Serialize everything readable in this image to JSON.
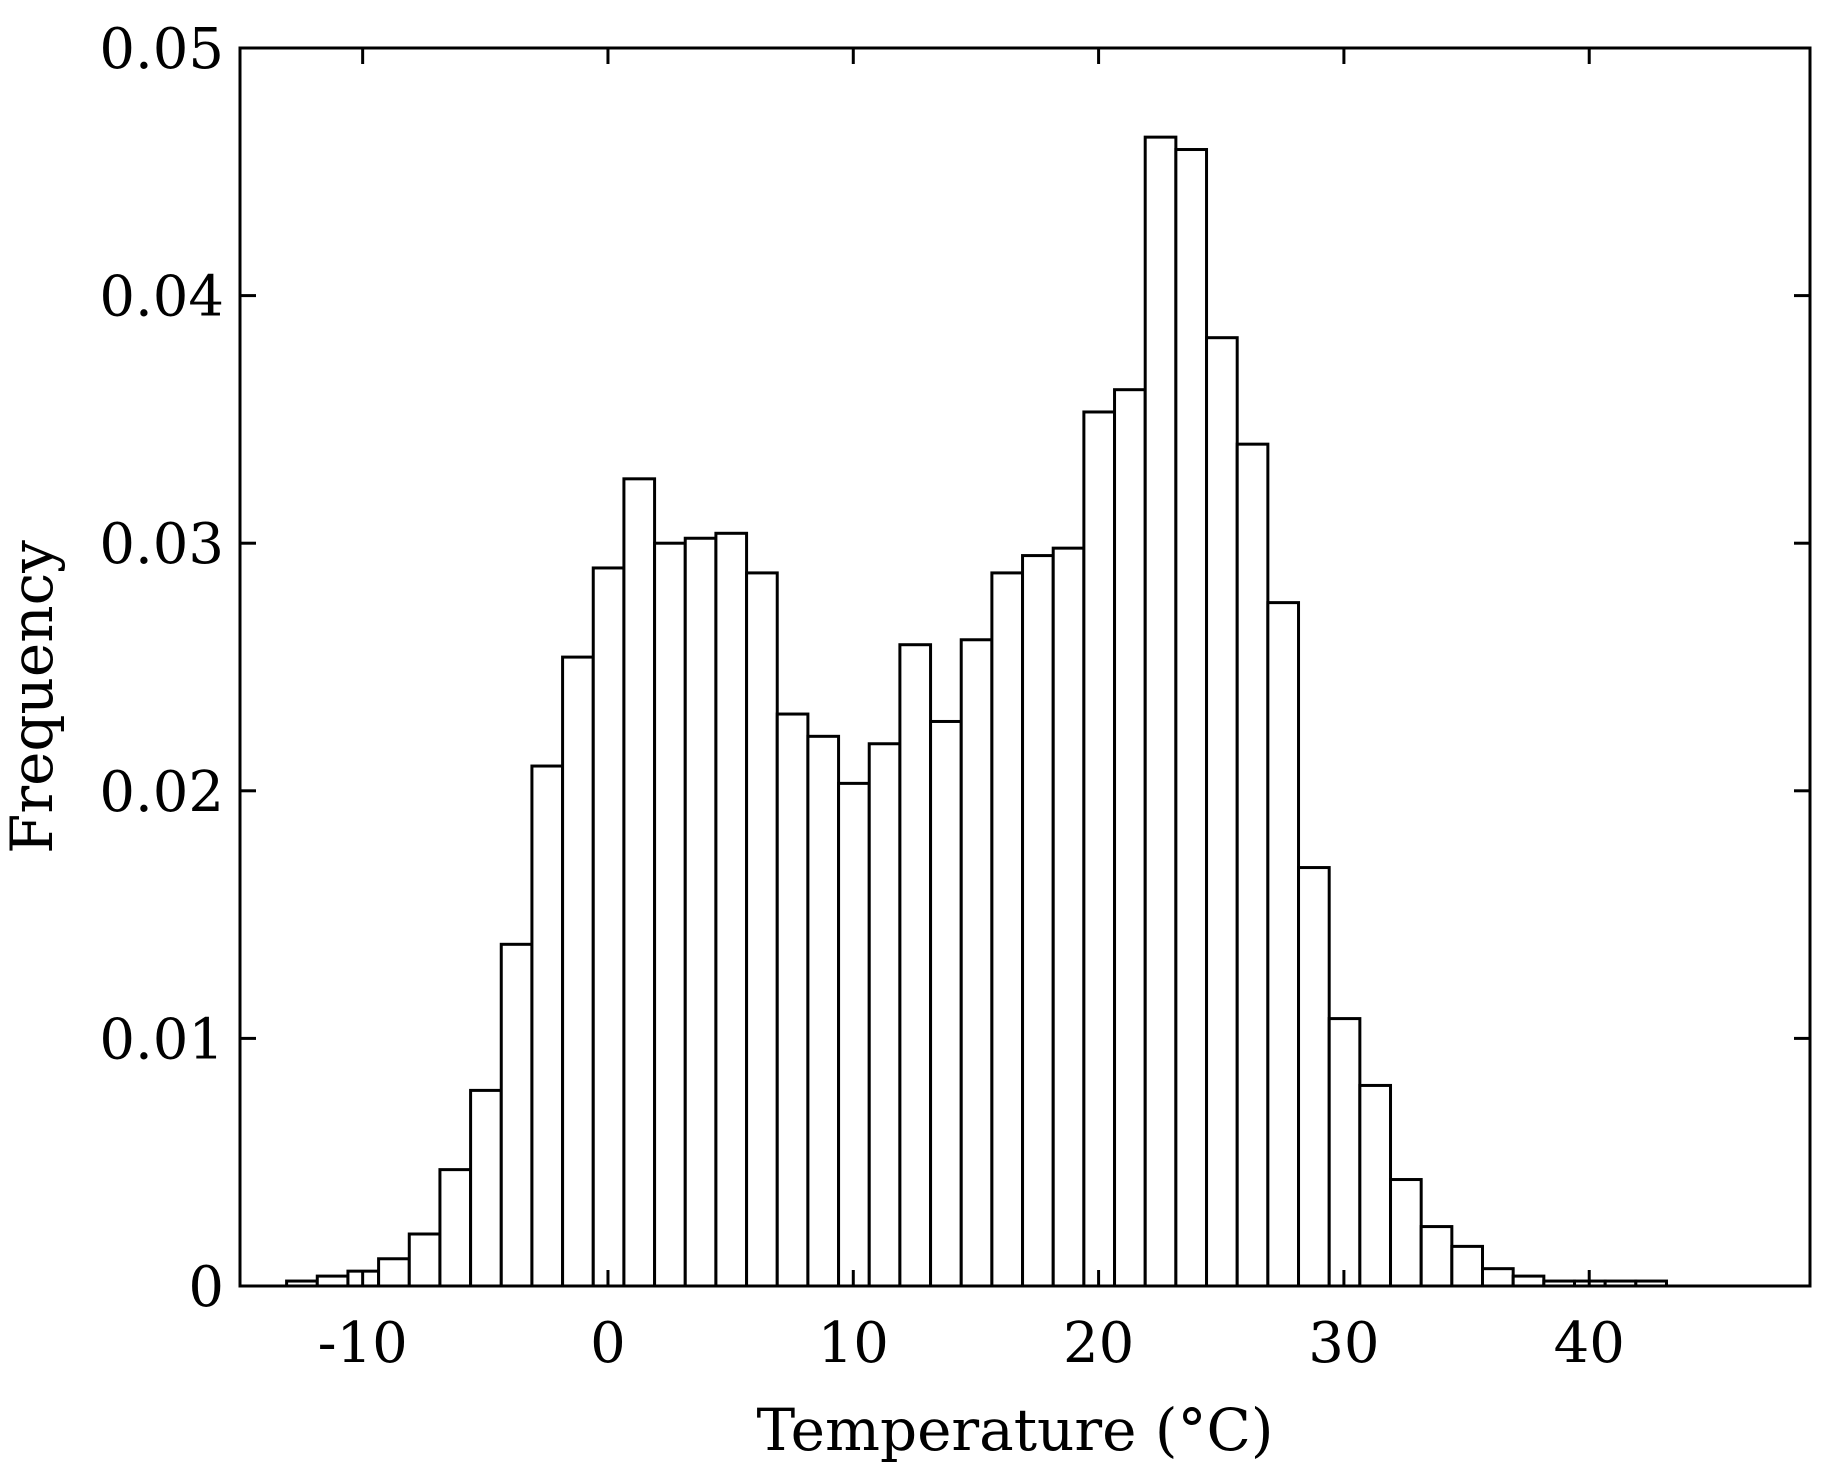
{
  "chart_data": {
    "type": "bar",
    "title": "",
    "xlabel": "Temperature (°C)",
    "ylabel": "Frequency",
    "xlim": [
      -15,
      49
    ],
    "ylim": [
      0,
      0.05
    ],
    "bin_width": 1.25,
    "xticks": [
      -10,
      0,
      10,
      20,
      30,
      40
    ],
    "xtick_labels": [
      "-10",
      "0",
      "10",
      "20",
      "30",
      "40"
    ],
    "yticks": [
      0,
      0.01,
      0.02,
      0.03,
      0.04,
      0.05
    ],
    "ytick_labels": [
      "0",
      "0.01",
      "0.02",
      "0.03",
      "0.04",
      "0.05"
    ],
    "grid": false,
    "legend": "none",
    "bar_fill": "#ffffff",
    "bar_stroke": "#000000",
    "bins": [
      {
        "x0": -13.1,
        "x1": -11.85,
        "y": 0.0002
      },
      {
        "x0": -11.85,
        "x1": -10.6,
        "y": 0.0004
      },
      {
        "x0": -10.6,
        "x1": -9.35,
        "y": 0.0006
      },
      {
        "x0": -9.35,
        "x1": -8.1,
        "y": 0.0011
      },
      {
        "x0": -8.1,
        "x1": -6.85,
        "y": 0.0021
      },
      {
        "x0": -6.85,
        "x1": -5.6,
        "y": 0.0047
      },
      {
        "x0": -5.6,
        "x1": -4.35,
        "y": 0.0079
      },
      {
        "x0": -4.35,
        "x1": -3.1,
        "y": 0.0138
      },
      {
        "x0": -3.1,
        "x1": -1.85,
        "y": 0.021
      },
      {
        "x0": -1.85,
        "x1": -0.6,
        "y": 0.0254
      },
      {
        "x0": -0.6,
        "x1": 0.65,
        "y": 0.029
      },
      {
        "x0": 0.65,
        "x1": 1.9,
        "y": 0.0326
      },
      {
        "x0": 1.9,
        "x1": 3.15,
        "y": 0.03
      },
      {
        "x0": 3.15,
        "x1": 4.4,
        "y": 0.0302
      },
      {
        "x0": 4.4,
        "x1": 5.65,
        "y": 0.0304
      },
      {
        "x0": 5.65,
        "x1": 6.9,
        "y": 0.0288
      },
      {
        "x0": 6.9,
        "x1": 8.15,
        "y": 0.0231
      },
      {
        "x0": 8.15,
        "x1": 9.4,
        "y": 0.0222
      },
      {
        "x0": 9.4,
        "x1": 10.65,
        "y": 0.0203
      },
      {
        "x0": 10.65,
        "x1": 11.9,
        "y": 0.0219
      },
      {
        "x0": 11.9,
        "x1": 13.15,
        "y": 0.0259
      },
      {
        "x0": 13.15,
        "x1": 14.4,
        "y": 0.0228
      },
      {
        "x0": 14.4,
        "x1": 15.65,
        "y": 0.0261
      },
      {
        "x0": 15.65,
        "x1": 16.9,
        "y": 0.0288
      },
      {
        "x0": 16.9,
        "x1": 18.15,
        "y": 0.0295
      },
      {
        "x0": 18.15,
        "x1": 19.4,
        "y": 0.0298
      },
      {
        "x0": 19.4,
        "x1": 20.65,
        "y": 0.0353
      },
      {
        "x0": 20.65,
        "x1": 21.9,
        "y": 0.0362
      },
      {
        "x0": 21.9,
        "x1": 23.15,
        "y": 0.0464
      },
      {
        "x0": 23.15,
        "x1": 24.4,
        "y": 0.0459
      },
      {
        "x0": 24.4,
        "x1": 25.65,
        "y": 0.0383
      },
      {
        "x0": 25.65,
        "x1": 26.9,
        "y": 0.034
      },
      {
        "x0": 26.9,
        "x1": 28.15,
        "y": 0.0276
      },
      {
        "x0": 28.15,
        "x1": 29.4,
        "y": 0.0169
      },
      {
        "x0": 29.4,
        "x1": 30.65,
        "y": 0.0108
      },
      {
        "x0": 30.65,
        "x1": 31.9,
        "y": 0.0081
      },
      {
        "x0": 31.9,
        "x1": 33.15,
        "y": 0.0043
      },
      {
        "x0": 33.15,
        "x1": 34.4,
        "y": 0.0024
      },
      {
        "x0": 34.4,
        "x1": 35.65,
        "y": 0.0016
      },
      {
        "x0": 35.65,
        "x1": 36.9,
        "y": 0.0007
      },
      {
        "x0": 36.9,
        "x1": 38.15,
        "y": 0.0004
      },
      {
        "x0": 38.15,
        "x1": 39.4,
        "y": 0.0002
      },
      {
        "x0": 39.4,
        "x1": 40.65,
        "y": 0.0002
      },
      {
        "x0": 40.65,
        "x1": 41.9,
        "y": 0.0002
      },
      {
        "x0": 41.9,
        "x1": 43.15,
        "y": 0.0002
      }
    ]
  }
}
